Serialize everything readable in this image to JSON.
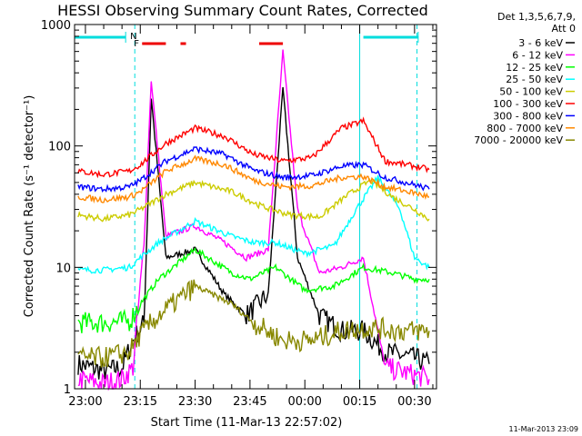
{
  "chart_data": {
    "type": "line",
    "title": "HESSI Observing Summary Count Rates, Corrected",
    "xlabel": "Start Time (11-Mar-13 22:57:02)",
    "ylabel": "Corrected Count Rate (s⁻¹ detector⁻¹)",
    "yscale": "log",
    "xlim": [
      "22:57:02",
      "00:36:00"
    ],
    "ylim": [
      1,
      1000
    ],
    "x_ticks": [
      "23:00",
      "23:15",
      "23:30",
      "23:45",
      "00:00",
      "00:15",
      "00:30"
    ],
    "y_ticks": [
      "1",
      "10",
      "100",
      "1000"
    ],
    "legend_header": [
      "Det 1,3,5,6,7,9,",
      "Att 0"
    ],
    "legend_position": "outside-right",
    "series": [
      {
        "name": "3 - 6 keV",
        "color": "#000000",
        "x": [
          "22:58",
          "23:05",
          "23:10",
          "23:13",
          "23:16",
          "23:18",
          "23:22",
          "23:30",
          "23:38",
          "23:44",
          "23:50",
          "23:54",
          "23:58",
          "00:04",
          "00:10",
          "00:16",
          "00:22",
          "00:30",
          "00:34"
        ],
        "y": [
          1.6,
          1.4,
          1.5,
          2.5,
          3.5,
          250,
          12,
          14,
          6,
          4,
          6,
          300,
          12,
          4,
          3,
          3,
          2,
          1.8,
          1.6
        ]
      },
      {
        "name": "6 - 12 keV",
        "color": "#ff00ff",
        "x": [
          "22:58",
          "23:05",
          "23:10",
          "23:13",
          "23:16",
          "23:18",
          "23:22",
          "23:30",
          "23:38",
          "23:44",
          "23:50",
          "23:54",
          "23:58",
          "00:04",
          "00:10",
          "00:16",
          "00:22",
          "00:30",
          "00:34"
        ],
        "y": [
          1.2,
          1.1,
          1.2,
          1.5,
          15,
          350,
          18,
          22,
          16,
          12,
          14,
          600,
          30,
          9,
          10,
          12,
          1.5,
          1.3,
          1.2
        ]
      },
      {
        "name": "12 - 25 keV",
        "color": "#00ff00",
        "x": [
          "22:58",
          "23:05",
          "23:12",
          "23:15",
          "23:20",
          "23:30",
          "23:40",
          "23:45",
          "23:52",
          "00:00",
          "00:08",
          "00:16",
          "00:24",
          "00:30",
          "00:34"
        ],
        "y": [
          3.5,
          3.5,
          3.6,
          5,
          8,
          14,
          9,
          8,
          10,
          6.5,
          7,
          10,
          9,
          8,
          8
        ]
      },
      {
        "name": "25 - 50 keV",
        "color": "#00ffff",
        "x": [
          "22:58",
          "23:05",
          "23:12",
          "23:15",
          "23:20",
          "23:30",
          "23:40",
          "23:46",
          "23:52",
          "00:00",
          "00:08",
          "00:14",
          "00:20",
          "00:26",
          "00:30",
          "00:34"
        ],
        "y": [
          9.5,
          9.5,
          10,
          12,
          16,
          24,
          18,
          16,
          16,
          13,
          15,
          30,
          55,
          30,
          12,
          10
        ]
      },
      {
        "name": "50 - 100 keV",
        "color": "#cccc00",
        "x": [
          "22:58",
          "23:05",
          "23:12",
          "23:15",
          "23:22",
          "23:30",
          "23:40",
          "23:48",
          "23:56",
          "00:04",
          "00:12",
          "00:18",
          "00:24",
          "00:30",
          "00:34"
        ],
        "y": [
          27,
          25,
          27,
          30,
          40,
          50,
          42,
          32,
          27,
          26,
          40,
          52,
          38,
          30,
          25
        ]
      },
      {
        "name": "100 - 300 keV",
        "color": "#ff0000",
        "x": [
          "22:58",
          "23:05",
          "23:12",
          "23:15",
          "23:22",
          "23:30",
          "23:38",
          "23:46",
          "23:54",
          "00:02",
          "00:10",
          "00:16",
          "00:22",
          "00:30",
          "00:34"
        ],
        "y": [
          62,
          58,
          62,
          70,
          105,
          140,
          120,
          85,
          75,
          80,
          140,
          160,
          75,
          68,
          64
        ]
      },
      {
        "name": "300 - 800 keV",
        "color": "#0000ff",
        "x": [
          "22:58",
          "23:05",
          "23:12",
          "23:15",
          "23:22",
          "23:30",
          "23:38",
          "23:46",
          "23:54",
          "00:02",
          "00:10",
          "00:16",
          "00:22",
          "00:30",
          "00:34"
        ],
        "y": [
          46,
          44,
          46,
          52,
          75,
          95,
          85,
          63,
          55,
          57,
          68,
          70,
          55,
          48,
          44
        ]
      },
      {
        "name": "800 - 7000 keV",
        "color": "#ff8800",
        "x": [
          "22:58",
          "23:05",
          "23:12",
          "23:15",
          "23:22",
          "23:30",
          "23:38",
          "23:46",
          "23:54",
          "00:02",
          "00:10",
          "00:16",
          "00:22",
          "00:30",
          "00:34"
        ],
        "y": [
          38,
          36,
          38,
          42,
          62,
          78,
          70,
          52,
          46,
          47,
          55,
          56,
          46,
          41,
          38
        ]
      },
      {
        "name": "7000 - 20000 keV",
        "color": "#888800",
        "x": [
          "22:58",
          "23:05",
          "23:12",
          "23:15",
          "23:20",
          "23:30",
          "23:40",
          "23:46",
          "23:54",
          "00:02",
          "00:10",
          "00:18",
          "00:26",
          "00:30",
          "00:34"
        ],
        "y": [
          1.8,
          1.8,
          2,
          2.8,
          4,
          7,
          5,
          3.5,
          2.5,
          2.5,
          3,
          3.2,
          3,
          3,
          3
        ]
      }
    ],
    "annotations": {
      "night_bars": [
        [
          "22:57:02",
          "23:11:00"
        ],
        [
          "00:16:00",
          "00:31:00"
        ]
      ],
      "night_bar_color": "#00dddd",
      "night_label": "N",
      "flare_label": "F",
      "flare_color": "#ee0000",
      "flare_segments": [
        [
          "23:15:30",
          "23:22:00"
        ],
        [
          "23:26:00",
          "23:27:30"
        ],
        [
          "23:47:30",
          "23:54:00"
        ]
      ],
      "saa_lines_dashed": [
        "23:13:30",
        "00:30:40"
      ],
      "saa_lines_solid": [
        "00:15:00"
      ]
    }
  },
  "timestamp": "11-Mar-2013 23:09"
}
